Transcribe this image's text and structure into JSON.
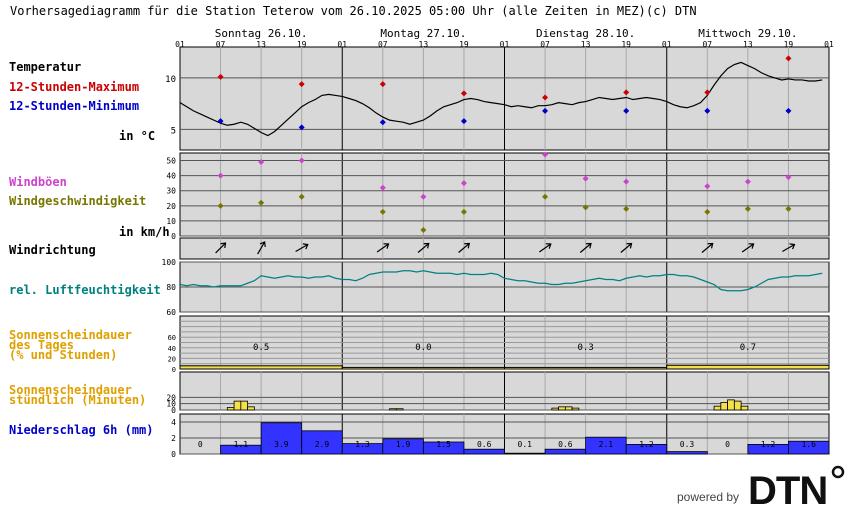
{
  "header": {
    "title": "Vorhersagediagramm für die Station Teterow vom 26.10.2025 05:00 Uhr (alle Zeiten in MEZ)",
    "copyright": "(c) DTN"
  },
  "days": [
    "Sonntag 26.10.",
    "Montag 27.10.",
    "Dienstag 28.10.",
    "Mittwoch 29.10."
  ],
  "hour_ticks": [
    "01",
    "07",
    "13",
    "19"
  ],
  "hour_tick_end": "01",
  "labels": {
    "temperature": "Temperatur",
    "max12": "12-Stunden-Maximum",
    "min12": "12-Stunden-Minimum",
    "temp_unit": "in °C",
    "gusts": "Windböen",
    "windspeed": "Windgeschwindigkeit",
    "wind_unit": "in km/h",
    "winddir": "Windrichtung",
    "humidity": "rel. Luftfeuchtigkeit",
    "sun_daily_1": "Sonnenscheindauer",
    "sun_daily_2": "des Tages",
    "sun_daily_3": "(% und Stunden)",
    "sun_hourly_1": "Sonnenscheindauer",
    "sun_hourly_2": "stündlich (Minuten)",
    "precip": "Niederschlag 6h (mm)"
  },
  "colors": {
    "panel_bg": "#d8d8d8",
    "grid": "#8c8c8c",
    "temp_line": "#000000",
    "max": "#cc0000",
    "min": "#0000cc",
    "gust": "#cc44cc",
    "wind": "#777700",
    "humidity": "#008080",
    "sun_label": "#e0a000",
    "sun_bar": "#f4e04a",
    "precip_label": "#0000cc",
    "precip_bar": "#3333ff"
  },
  "footer": {
    "powered_by": "powered by",
    "brand": "DTN"
  },
  "chart_data": {
    "type": "meteogram",
    "x_unit": "hours from 26.10. 01:00",
    "x_range": [
      0,
      96
    ],
    "temperature": {
      "ylim": [
        3,
        13
      ],
      "yticks": [
        "10",
        "5"
      ],
      "hourly": [
        7.6,
        7.2,
        6.8,
        6.5,
        6.2,
        5.9,
        5.6,
        5.4,
        5.5,
        5.7,
        5.5,
        5.1,
        4.7,
        4.4,
        4.8,
        5.4,
        6.0,
        6.6,
        7.2,
        7.6,
        7.9,
        8.3,
        8.4,
        8.3,
        8.2,
        8.0,
        7.8,
        7.5,
        7.1,
        6.6,
        6.2,
        5.9,
        5.8,
        5.7,
        5.5,
        5.7,
        5.9,
        6.3,
        6.8,
        7.2,
        7.4,
        7.6,
        7.9,
        8.0,
        7.9,
        7.7,
        7.6,
        7.5,
        7.4,
        7.2,
        7.3,
        7.2,
        7.1,
        7.3,
        7.3,
        7.4,
        7.6,
        7.5,
        7.4,
        7.6,
        7.7,
        7.9,
        8.1,
        8.0,
        7.9,
        8.0,
        8.1,
        7.9,
        8.0,
        8.1,
        8.0,
        7.9,
        7.7,
        7.4,
        7.2,
        7.1,
        7.3,
        7.6,
        8.3,
        9.3,
        10.2,
        10.9,
        11.3,
        11.5,
        11.2,
        10.9,
        10.5,
        10.2,
        10.0,
        9.8,
        9.9,
        9.8,
        9.8,
        9.7,
        9.7,
        9.8
      ],
      "max12": [
        {
          "h": 6,
          "v": 10.1
        },
        {
          "h": 18,
          "v": 9.4
        },
        {
          "h": 30,
          "v": 9.4
        },
        {
          "h": 42,
          "v": 8.5
        },
        {
          "h": 54,
          "v": 8.1
        },
        {
          "h": 66,
          "v": 8.6
        },
        {
          "h": 78,
          "v": 8.6
        },
        {
          "h": 90,
          "v": 11.9
        }
      ],
      "min12": [
        {
          "h": 6,
          "v": 5.8
        },
        {
          "h": 18,
          "v": 5.2
        },
        {
          "h": 30,
          "v": 5.7
        },
        {
          "h": 42,
          "v": 5.8
        },
        {
          "h": 54,
          "v": 6.8
        },
        {
          "h": 66,
          "v": 6.8
        },
        {
          "h": 78,
          "v": 6.8
        },
        {
          "h": 90,
          "v": 6.8
        }
      ]
    },
    "wind": {
      "ylim": [
        0,
        55
      ],
      "yticks": [
        "50",
        "40",
        "30",
        "20",
        "10",
        "0"
      ],
      "gusts": [
        {
          "h": 6,
          "v": 40
        },
        {
          "h": 12,
          "v": 49
        },
        {
          "h": 18,
          "v": 50
        },
        {
          "h": 30,
          "v": 32
        },
        {
          "h": 36,
          "v": 26
        },
        {
          "h": 42,
          "v": 35
        },
        {
          "h": 54,
          "v": 54
        },
        {
          "h": 60,
          "v": 38
        },
        {
          "h": 66,
          "v": 36
        },
        {
          "h": 78,
          "v": 33
        },
        {
          "h": 84,
          "v": 36
        },
        {
          "h": 90,
          "v": 39
        }
      ],
      "speed": [
        {
          "h": 6,
          "v": 20
        },
        {
          "h": 12,
          "v": 22
        },
        {
          "h": 18,
          "v": 26
        },
        {
          "h": 30,
          "v": 16
        },
        {
          "h": 36,
          "v": 4
        },
        {
          "h": 42,
          "v": 16
        },
        {
          "h": 54,
          "v": 26
        },
        {
          "h": 60,
          "v": 19
        },
        {
          "h": 66,
          "v": 18
        },
        {
          "h": 78,
          "v": 16
        },
        {
          "h": 84,
          "v": 18
        },
        {
          "h": 90,
          "v": 18
        }
      ]
    },
    "wind_direction": [
      {
        "h": 6,
        "rot": 45
      },
      {
        "h": 12,
        "rot": 30
      },
      {
        "h": 18,
        "rot": 60
      },
      {
        "h": 30,
        "rot": 55
      },
      {
        "h": 36,
        "rot": 50
      },
      {
        "h": 42,
        "rot": 50
      },
      {
        "h": 54,
        "rot": 55
      },
      {
        "h": 60,
        "rot": 50
      },
      {
        "h": 66,
        "rot": 50
      },
      {
        "h": 78,
        "rot": 50
      },
      {
        "h": 84,
        "rot": 55
      },
      {
        "h": 90,
        "rot": 60
      }
    ],
    "humidity": {
      "ylim": [
        60,
        100
      ],
      "yticks": [
        "100",
        "80",
        "60"
      ],
      "hourly": [
        82,
        81,
        82,
        81,
        81,
        80,
        81,
        81,
        81,
        81,
        83,
        85,
        89,
        88,
        87,
        88,
        89,
        88,
        88,
        87,
        88,
        88,
        89,
        87,
        86,
        86,
        85,
        87,
        90,
        91,
        92,
        92,
        92,
        93,
        93,
        92,
        93,
        92,
        91,
        91,
        91,
        90,
        91,
        90,
        90,
        90,
        91,
        90,
        87,
        86,
        85,
        85,
        84,
        83,
        83,
        82,
        82,
        83,
        83,
        84,
        85,
        86,
        87,
        86,
        86,
        85,
        87,
        88,
        89,
        88,
        89,
        89,
        90,
        90,
        89,
        89,
        88,
        86,
        84,
        82,
        78,
        77,
        77,
        77,
        78,
        80,
        83,
        86,
        87,
        88,
        88,
        89,
        89,
        89,
        90,
        91
      ]
    },
    "sunshine_daily": {
      "ylim": [
        0,
        100
      ],
      "labels": [
        "0.5",
        "0.0",
        "0.3",
        "0.7"
      ],
      "percent": [
        6,
        0,
        3,
        7
      ]
    },
    "sunshine_hourly": {
      "ylim": [
        0,
        60
      ],
      "yticks": [
        "20",
        "10",
        "0"
      ],
      "bars": [
        {
          "h": 7,
          "v": 4
        },
        {
          "h": 8,
          "v": 14
        },
        {
          "h": 9,
          "v": 14
        },
        {
          "h": 10,
          "v": 5
        },
        {
          "h": 31,
          "v": 2
        },
        {
          "h": 32,
          "v": 2
        },
        {
          "h": 55,
          "v": 3
        },
        {
          "h": 56,
          "v": 5
        },
        {
          "h": 57,
          "v": 5
        },
        {
          "h": 58,
          "v": 3
        },
        {
          "h": 79,
          "v": 6
        },
        {
          "h": 80,
          "v": 12
        },
        {
          "h": 81,
          "v": 16
        },
        {
          "h": 82,
          "v": 14
        },
        {
          "h": 83,
          "v": 6
        }
      ]
    },
    "precipitation_6h": {
      "ylim": [
        0,
        5
      ],
      "yticks": [
        "4",
        "2",
        "0"
      ],
      "values": [
        0.0,
        1.1,
        3.9,
        2.9,
        1.3,
        1.9,
        1.5,
        0.6,
        0.1,
        0.6,
        2.1,
        1.2,
        0.3,
        0.0,
        1.2,
        1.6
      ],
      "labels": [
        "0",
        "1.1",
        "3.9",
        "2.9",
        "1.3",
        "1.9",
        "1.5",
        "0.6",
        "0.1",
        "0.6",
        "2.1",
        "1.2",
        "0.3",
        "0",
        "1.2",
        "1.6"
      ]
    }
  }
}
